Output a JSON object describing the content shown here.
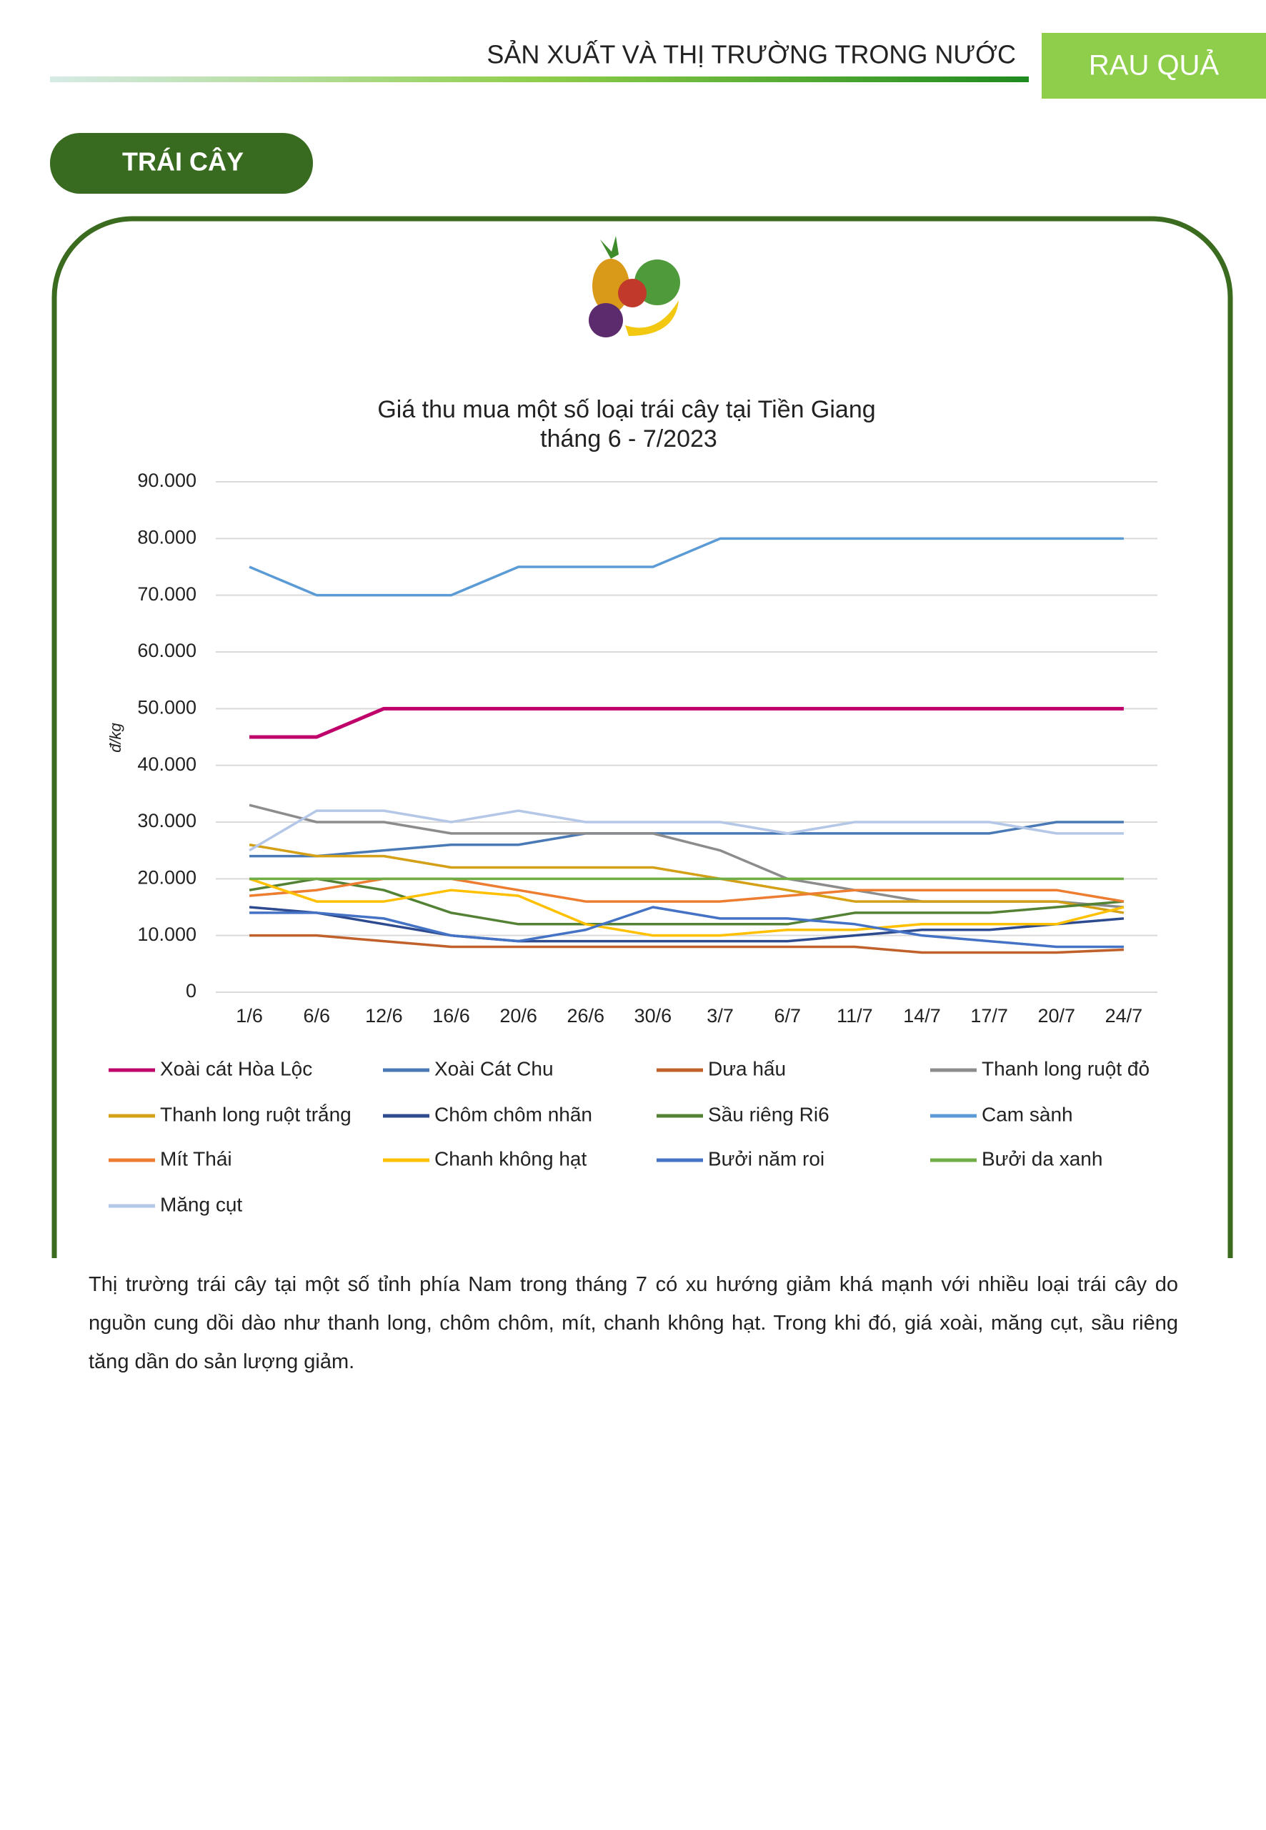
{
  "header": {
    "section": "SẢN XUẤT VÀ THỊ TRƯỜNG TRONG NƯỚC",
    "tag": "RAU QUẢ"
  },
  "section_label": "TRÁI CÂY",
  "chart_data": {
    "type": "line",
    "title": "Giá thu mua một số loại trái cây tại Tiền Giang",
    "subtitle": "tháng 6 - 7/2023",
    "y_label": "đ/kg",
    "categories": [
      "1/6",
      "6/6",
      "12/6",
      "16/6",
      "20/6",
      "26/6",
      "30/6",
      "3/7",
      "6/7",
      "11/7",
      "14/7",
      "17/7",
      "20/7",
      "24/7"
    ],
    "ylim": [
      0,
      90000
    ],
    "yticks": [
      0,
      {
        "value": 10000,
        "label": "10.000"
      },
      {
        "value": 20000,
        "label": "20.000"
      },
      {
        "value": 30000,
        "label": "30.000"
      },
      {
        "value": 40000,
        "label": "40.000"
      },
      {
        "value": 50000,
        "label": "50.000"
      },
      {
        "value": 60000,
        "label": "60.000"
      },
      {
        "value": 70000,
        "label": "70.000"
      },
      {
        "value": 80000,
        "label": "80.000"
      },
      {
        "value": 90000,
        "label": "90.000"
      }
    ],
    "grid": true,
    "legend": "bottom",
    "series": [
      {
        "name": "Xoài cát Hòa Lộc",
        "color": "#c0006a",
        "values": [
          45000,
          45000,
          50000,
          50000,
          50000,
          50000,
          50000,
          50000,
          50000,
          50000,
          50000,
          50000,
          50000,
          50000
        ]
      },
      {
        "name": "Xoài Cát Chu",
        "color": "#4a7ab5",
        "values": [
          24000,
          24000,
          25000,
          26000,
          26000,
          28000,
          28000,
          28000,
          28000,
          28000,
          28000,
          28000,
          30000,
          30000
        ]
      },
      {
        "name": "Dưa hấu",
        "color": "#c0612b",
        "values": [
          10000,
          10000,
          9000,
          8000,
          8000,
          8000,
          8000,
          8000,
          8000,
          8000,
          7000,
          7000,
          7000,
          7500
        ]
      },
      {
        "name": "Thanh long ruột đỏ",
        "color": "#8c8c8c",
        "values": [
          33000,
          30000,
          30000,
          28000,
          28000,
          28000,
          28000,
          25000,
          20000,
          18000,
          16000,
          16000,
          16000,
          15000
        ]
      },
      {
        "name": "Thanh long ruột trắng",
        "color": "#d4a017",
        "values": [
          26000,
          24000,
          24000,
          22000,
          22000,
          22000,
          22000,
          20000,
          18000,
          16000,
          16000,
          16000,
          16000,
          14000
        ]
      },
      {
        "name": "Chôm chôm nhãn",
        "color": "#2f4b8f",
        "values": [
          15000,
          14000,
          12000,
          10000,
          9000,
          9000,
          9000,
          9000,
          9000,
          10000,
          11000,
          11000,
          12000,
          13000
        ]
      },
      {
        "name": "Sầu riêng Ri6",
        "color": "#548235",
        "values": [
          18000,
          20000,
          18000,
          14000,
          12000,
          12000,
          12000,
          12000,
          12000,
          14000,
          14000,
          14000,
          15000,
          16000
        ]
      },
      {
        "name": "Cam sành",
        "color": "#5b9bd5",
        "values": [
          75000,
          70000,
          70000,
          70000,
          75000,
          75000,
          75000,
          80000,
          80000,
          80000,
          80000,
          80000,
          80000,
          80000
        ]
      },
      {
        "name": "Mít Thái",
        "color": "#ed7d31",
        "values": [
          17000,
          18000,
          20000,
          20000,
          18000,
          16000,
          16000,
          16000,
          17000,
          18000,
          18000,
          18000,
          18000,
          16000
        ]
      },
      {
        "name": "Chanh không hạt",
        "color": "#ffc000",
        "values": [
          20000,
          16000,
          16000,
          18000,
          17000,
          12000,
          10000,
          10000,
          11000,
          11000,
          12000,
          12000,
          12000,
          15000
        ]
      },
      {
        "name": "Bưởi năm roi",
        "color": "#4472c4",
        "values": [
          14000,
          14000,
          13000,
          10000,
          9000,
          11000,
          15000,
          13000,
          13000,
          12000,
          10000,
          9000,
          8000,
          8000
        ]
      },
      {
        "name": "Bưởi da xanh",
        "color": "#70ad47",
        "values": [
          20000,
          20000,
          20000,
          20000,
          20000,
          20000,
          20000,
          20000,
          20000,
          20000,
          20000,
          20000,
          20000,
          20000
        ]
      },
      {
        "name": "Măng cụt",
        "color": "#b4c7e7",
        "values": [
          25000,
          32000,
          32000,
          30000,
          32000,
          30000,
          30000,
          30000,
          28000,
          30000,
          30000,
          30000,
          28000,
          28000
        ]
      }
    ]
  },
  "paragraph": "Thị trường trái cây tại một số tỉnh phía Nam trong tháng 7 có xu hướng giảm khá mạnh với nhiều loại trái cây do nguồn cung dồi dào như thanh long, chôm chôm, mít, chanh không hạt. Trong khi đó, giá xoài, măng cụt, sầu riêng tăng dần do sản lượng giảm."
}
